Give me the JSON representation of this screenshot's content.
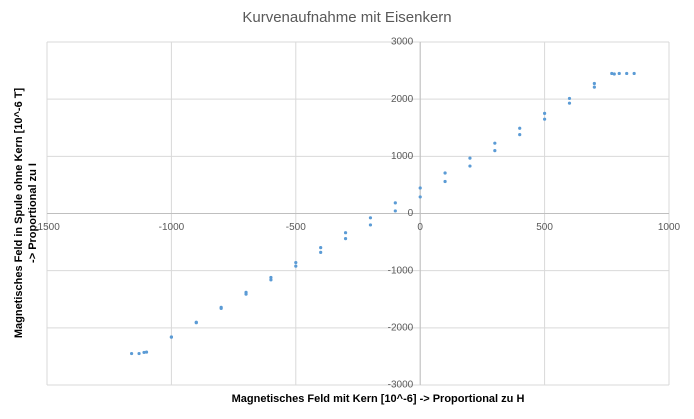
{
  "chart_data": {
    "type": "scatter",
    "title": "Kurvenaufnahme mit Eisenkern",
    "xlabel": "Magnetisches Feld mit Kern [10^-6] -> Proportional zu H",
    "ylabel": [
      "Magnetisches Feld in Spule ohne Kern [10^-6 T]",
      "-> Proportional zu I"
    ],
    "x": [
      -1160,
      -1130,
      -1110,
      -1000,
      -900,
      -800,
      -700,
      -600,
      -500,
      -400,
      -300,
      -200,
      -100,
      0,
      100,
      200,
      300,
      400,
      500,
      600,
      700,
      780,
      800,
      860,
      830,
      770,
      700,
      600,
      500,
      400,
      300,
      200,
      100,
      0,
      -100,
      -200,
      -300,
      -400,
      -500,
      -600,
      -700,
      -800,
      -900,
      -1000,
      -1100
    ],
    "values": [
      -2450,
      -2450,
      -2430,
      -2160,
      -1910,
      -1660,
      -1410,
      -1160,
      -920,
      -680,
      -440,
      -200,
      45,
      290,
      560,
      830,
      1100,
      1380,
      1650,
      1930,
      2210,
      2440,
      2450,
      2450,
      2450,
      2450,
      2274,
      2013,
      1752,
      1491,
      1230,
      969,
      708,
      447,
      186,
      -75,
      -336,
      -597,
      -858,
      -1119,
      -1380,
      -1641,
      -1902,
      -2163,
      -2424
    ],
    "color": "#5b9bd5",
    "xlim": [
      -1500,
      1000
    ],
    "xticks": [
      -1500,
      -1000,
      -500,
      0,
      500,
      1000
    ],
    "ylim": [
      -3000,
      3000
    ],
    "yticks": [
      -3000,
      -2000,
      -1000,
      0,
      1000,
      2000,
      3000
    ],
    "grid": true
  }
}
